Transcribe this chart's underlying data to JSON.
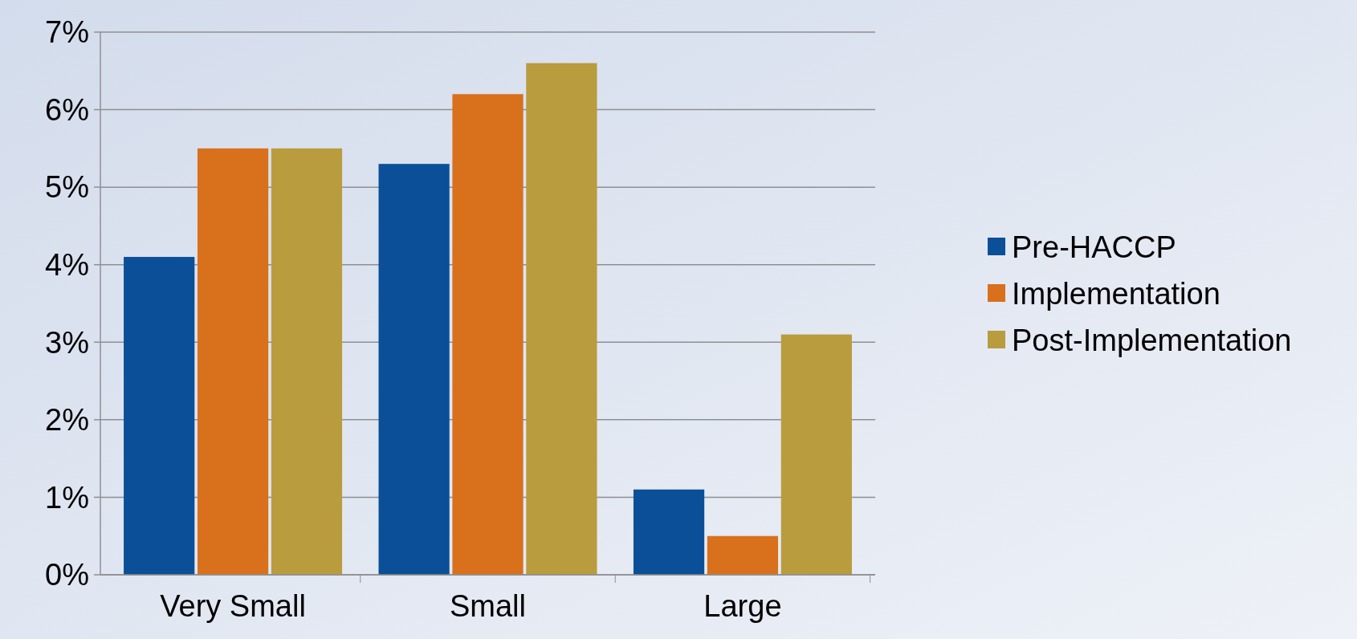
{
  "chart_data": {
    "type": "bar",
    "categories": [
      "Very Small",
      "Small",
      "Large"
    ],
    "series": [
      {
        "name": "Pre-HACCP",
        "color": "#0b4f98",
        "values": [
          4.1,
          5.3,
          1.1
        ]
      },
      {
        "name": "Implementation",
        "color": "#d8701c",
        "values": [
          5.5,
          6.2,
          0.5
        ]
      },
      {
        "name": "Post-Implementation",
        "color": "#b89c3e",
        "values": [
          5.5,
          6.6,
          3.1
        ]
      }
    ],
    "ylim": [
      0,
      7
    ],
    "yticks": [
      {
        "value": 0,
        "label": "0%"
      },
      {
        "value": 1,
        "label": "1%"
      },
      {
        "value": 2,
        "label": "2%"
      },
      {
        "value": 3,
        "label": "3%"
      },
      {
        "value": 4,
        "label": "4%"
      },
      {
        "value": 5,
        "label": "5%"
      },
      {
        "value": 6,
        "label": "6%"
      },
      {
        "value": 7,
        "label": "7%"
      }
    ],
    "grid": "y",
    "legend": "right"
  }
}
